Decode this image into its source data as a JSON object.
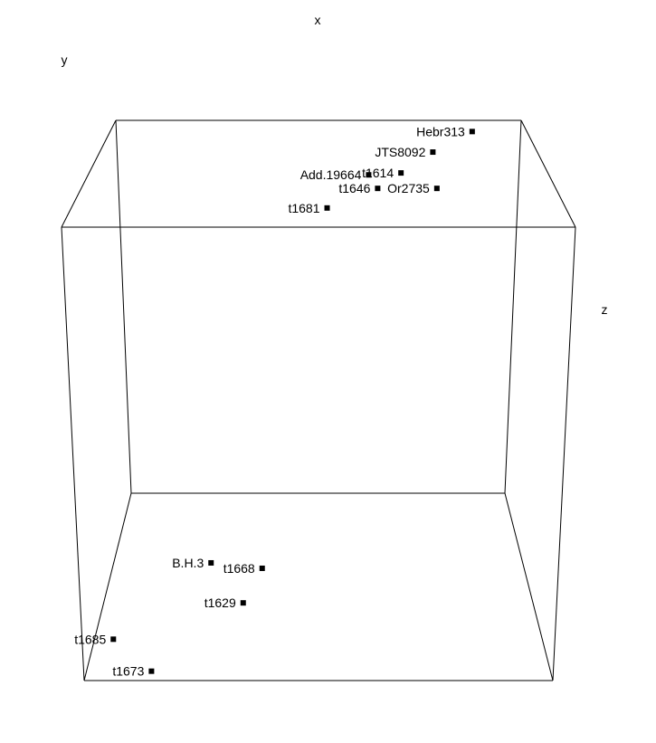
{
  "chart_data": {
    "type": "scatter",
    "title": "",
    "axes": {
      "x": "x",
      "y": "y",
      "z": "z"
    },
    "box": true,
    "grid": false,
    "points": [
      {
        "label": "Hebr313",
        "x": 0.88,
        "y": 0.97,
        "z": 1.0,
        "color": "#000000"
      },
      {
        "label": "JTS8092",
        "x": 0.78,
        "y": 0.93,
        "z": 0.95,
        "color": "#000000"
      },
      {
        "label": "Add.19664",
        "x": 0.62,
        "y": 0.9,
        "z": 0.85,
        "color": "#000000"
      },
      {
        "label": "t1614",
        "x": 0.7,
        "y": 0.89,
        "z": 0.9,
        "color": "#000000"
      },
      {
        "label": "t1646",
        "x": 0.64,
        "y": 0.88,
        "z": 0.8,
        "color": "#000000"
      },
      {
        "label": "Or2735",
        "x": 0.78,
        "y": 0.88,
        "z": 0.8,
        "color": "#000000"
      },
      {
        "label": "t1681",
        "x": 0.52,
        "y": 0.86,
        "z": 0.7,
        "color": "#000000"
      },
      {
        "label": "B.H.3",
        "x": 0.25,
        "y": 0.08,
        "z": 0.45,
        "color": "#000000"
      },
      {
        "label": "t1668",
        "x": 0.37,
        "y": 0.08,
        "z": 0.42,
        "color": "#000000"
      },
      {
        "label": "t1629",
        "x": 0.33,
        "y": 0.05,
        "z": 0.3,
        "color": "#000000"
      },
      {
        "label": "t1685",
        "x": 0.05,
        "y": 0.03,
        "z": 0.15,
        "color": "#000000"
      },
      {
        "label": "t1673",
        "x": 0.14,
        "y": 0.0,
        "z": 0.05,
        "color": "#000000"
      }
    ]
  }
}
